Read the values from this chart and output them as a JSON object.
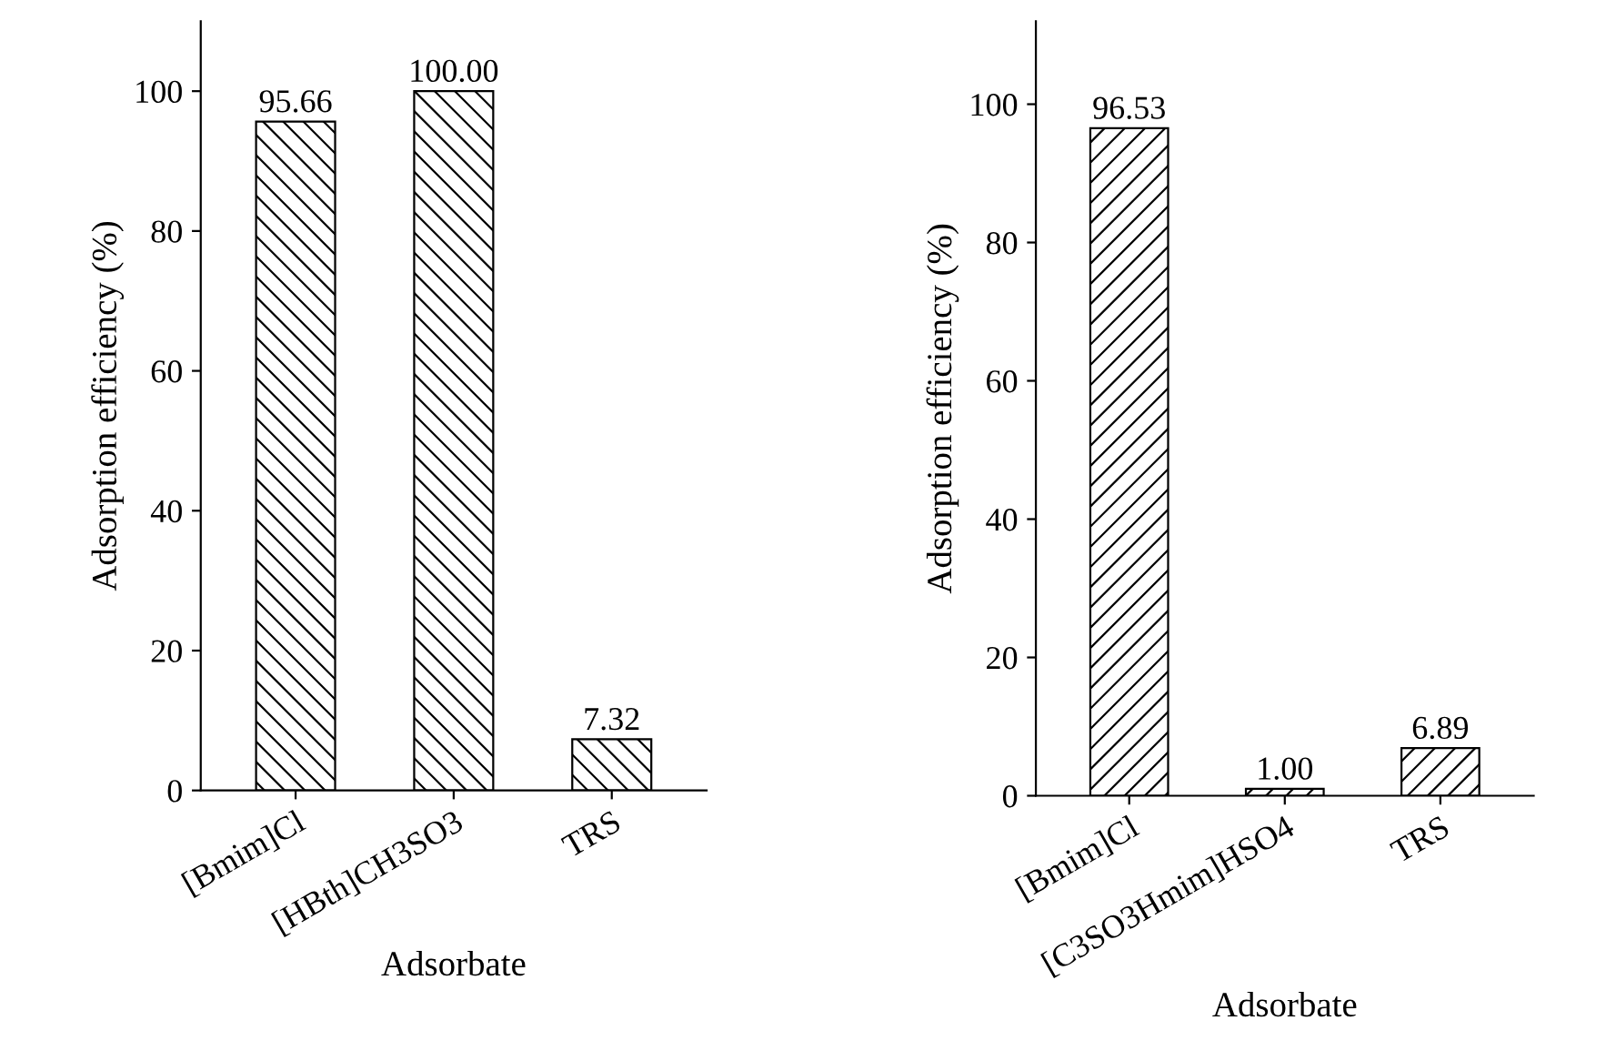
{
  "chart_data": [
    {
      "type": "bar",
      "xlabel": "Adsorbate",
      "ylabel": "Adsorption efficiency (%)",
      "categories": [
        "[Bmim]Cl",
        "[HBth]CH3SO3",
        "TRS"
      ],
      "values": [
        95.66,
        100.0,
        7.32
      ],
      "value_labels": [
        "95.66",
        "100.00",
        "7.32"
      ],
      "color": "#000000",
      "ylim": [
        0,
        110
      ],
      "yticks": [
        0,
        20,
        40,
        60,
        80,
        100
      ],
      "grid": false,
      "legend": false
    },
    {
      "type": "bar",
      "xlabel": "Adsorbate",
      "ylabel": "Adsorption efficiency (%)",
      "categories": [
        "[Bmim]Cl",
        "[C3SO3Hmim]HSO4",
        "TRS"
      ],
      "values": [
        96.53,
        1.0,
        6.89
      ],
      "value_labels": [
        "96.53",
        "1.00",
        "6.89"
      ],
      "color": "#000000",
      "ylim": [
        0,
        112
      ],
      "yticks": [
        0,
        20,
        40,
        60,
        80,
        100
      ],
      "grid": false,
      "legend": false
    }
  ]
}
